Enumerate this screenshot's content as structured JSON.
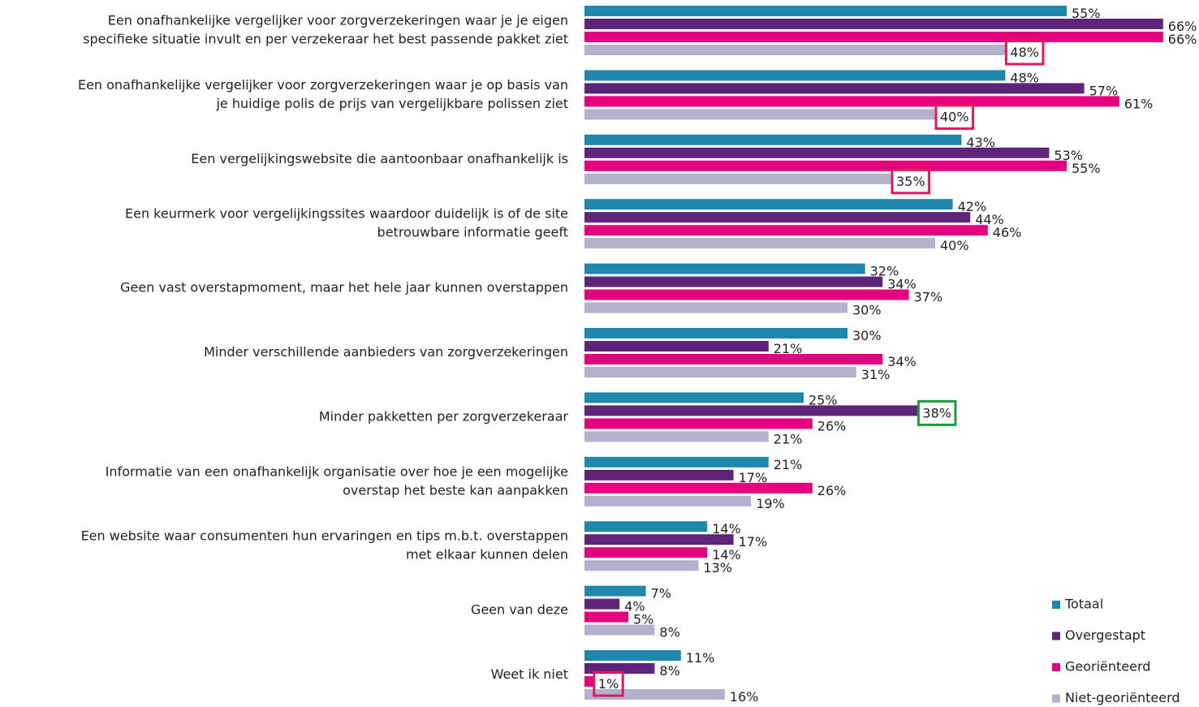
{
  "chart_data": {
    "type": "bar",
    "orientation": "horizontal",
    "categories": [
      [
        "Een onafhankelijke vergelijker voor zorgverzekeringen waar je je eigen",
        "specifieke situatie invult en per verzekeraar het best passende pakket ziet"
      ],
      [
        "Een onafhankelijke vergelijker voor zorgverzekeringen waar je op basis van",
        "je huidige polis de prijs van vergelijkbare polissen ziet"
      ],
      [
        "Een vergelijkingswebsite die aantoonbaar onafhankelijk is"
      ],
      [
        "Een keurmerk voor vergelijkingssites waardoor duidelijk is of de site",
        "betrouwbare informatie geeft"
      ],
      [
        "Geen vast overstapmoment, maar het hele jaar kunnen overstappen"
      ],
      [
        "Minder verschillende aanbieders van zorgverzekeringen"
      ],
      [
        "Minder pakketten per zorgverzekeraar"
      ],
      [
        "Informatie van een onafhankelijk organisatie over hoe je een mogelijke",
        "overstap het beste kan aanpakken"
      ],
      [
        "Een website waar consumenten hun ervaringen en tips m.b.t. overstappen",
        "met elkaar kunnen delen"
      ],
      [
        "Geen van deze"
      ],
      [
        "Weet ik niet"
      ]
    ],
    "series": [
      {
        "name": "Totaal",
        "color": "#1e87ab",
        "values": [
          55,
          48,
          43,
          42,
          32,
          30,
          25,
          21,
          14,
          7,
          11
        ],
        "value_labels": [
          "55%",
          "48%",
          "43%",
          "42%",
          "32%",
          "30%",
          "25%",
          "21%",
          "14%",
          "7%",
          "11%"
        ]
      },
      {
        "name": "Overgestapt",
        "color": "#5e2479",
        "values": [
          66,
          57,
          53,
          44,
          34,
          21,
          38,
          17,
          17,
          4,
          8
        ],
        "value_labels": [
          "66%",
          "57%",
          "53%",
          "44%",
          "34%",
          "21%",
          "38%",
          "17%",
          "17%",
          "4%",
          "8%"
        ]
      },
      {
        "name": "Georiënteerd",
        "color": "#e5007d",
        "values": [
          66,
          61,
          55,
          46,
          37,
          34,
          26,
          26,
          14,
          5,
          1
        ],
        "value_labels": [
          "66%",
          "61%",
          "55%",
          "46%",
          "37%",
          "34%",
          "26%",
          "26%",
          "14%",
          "5%",
          "1%"
        ]
      },
      {
        "name": "Niet-georiënteerd",
        "color": "#b4b1ce",
        "values": [
          48,
          40,
          35,
          40,
          30,
          31,
          21,
          19,
          13,
          8,
          16
        ],
        "value_labels": [
          "48%",
          "40%",
          "35%",
          "40%",
          "30%",
          "31%",
          "21%",
          "19%",
          "13%",
          "8%",
          "16%"
        ]
      }
    ],
    "xlim": [
      0,
      70
    ],
    "highlights": [
      {
        "series": 3,
        "index": 0,
        "color": "#e0195c"
      },
      {
        "series": 3,
        "index": 1,
        "color": "#e0195c"
      },
      {
        "series": 3,
        "index": 2,
        "color": "#e0195c"
      },
      {
        "series": 2,
        "index": 10,
        "color": "#e0195c"
      },
      {
        "series": 1,
        "index": 6,
        "color": "#1e9a3c"
      }
    ],
    "legend": "bottom-right"
  }
}
